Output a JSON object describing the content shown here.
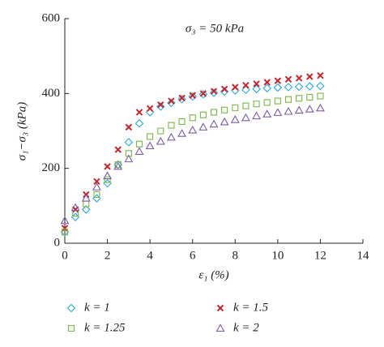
{
  "chart_data": {
    "type": "scatter",
    "title": "σ₃ = 50 kPa",
    "x_label": "ε₁ (%)",
    "y_label": "σ₁−σ₃ (kPa)",
    "x": [
      0,
      0.5,
      1,
      1.5,
      2,
      2.5,
      3,
      3.5,
      4,
      4.5,
      5,
      5.5,
      6,
      6.5,
      7,
      7.5,
      8,
      8.5,
      9,
      9.5,
      10,
      10.5,
      11,
      11.5,
      12
    ],
    "series": [
      {
        "name": "k = 1",
        "color": "#2aa7df",
        "marker": "diamond",
        "values": [
          30,
          70,
          90,
          120,
          160,
          210,
          270,
          320,
          350,
          365,
          375,
          385,
          392,
          398,
          402,
          405,
          408,
          410,
          412,
          414,
          416,
          417,
          418,
          419,
          420
        ]
      },
      {
        "name": "k = 1.5",
        "color": "#c0282d",
        "marker": "x",
        "values": [
          40,
          90,
          130,
          165,
          205,
          250,
          310,
          350,
          360,
          370,
          380,
          388,
          395,
          400,
          406,
          412,
          417,
          422,
          426,
          430,
          434,
          438,
          441,
          445,
          448
        ]
      },
      {
        "name": "k = 1.25",
        "color": "#7ab648",
        "marker": "square",
        "values": [
          30,
          80,
          105,
          130,
          170,
          210,
          240,
          265,
          285,
          300,
          315,
          325,
          335,
          343,
          350,
          356,
          362,
          367,
          372,
          376,
          380,
          384,
          387,
          390,
          393
        ]
      },
      {
        "name": "k = 2",
        "color": "#7b5aa6",
        "marker": "triangle",
        "values": [
          60,
          95,
          120,
          150,
          180,
          205,
          225,
          245,
          260,
          272,
          283,
          293,
          302,
          310,
          318,
          324,
          330,
          335,
          340,
          345,
          349,
          352,
          355,
          358,
          361
        ]
      }
    ],
    "xlim": [
      0,
      14
    ],
    "xticks": [
      0,
      2,
      4,
      6,
      8,
      10,
      12,
      14
    ],
    "ylim": [
      0,
      600
    ],
    "yticks": [
      0,
      200,
      400,
      600
    ]
  }
}
